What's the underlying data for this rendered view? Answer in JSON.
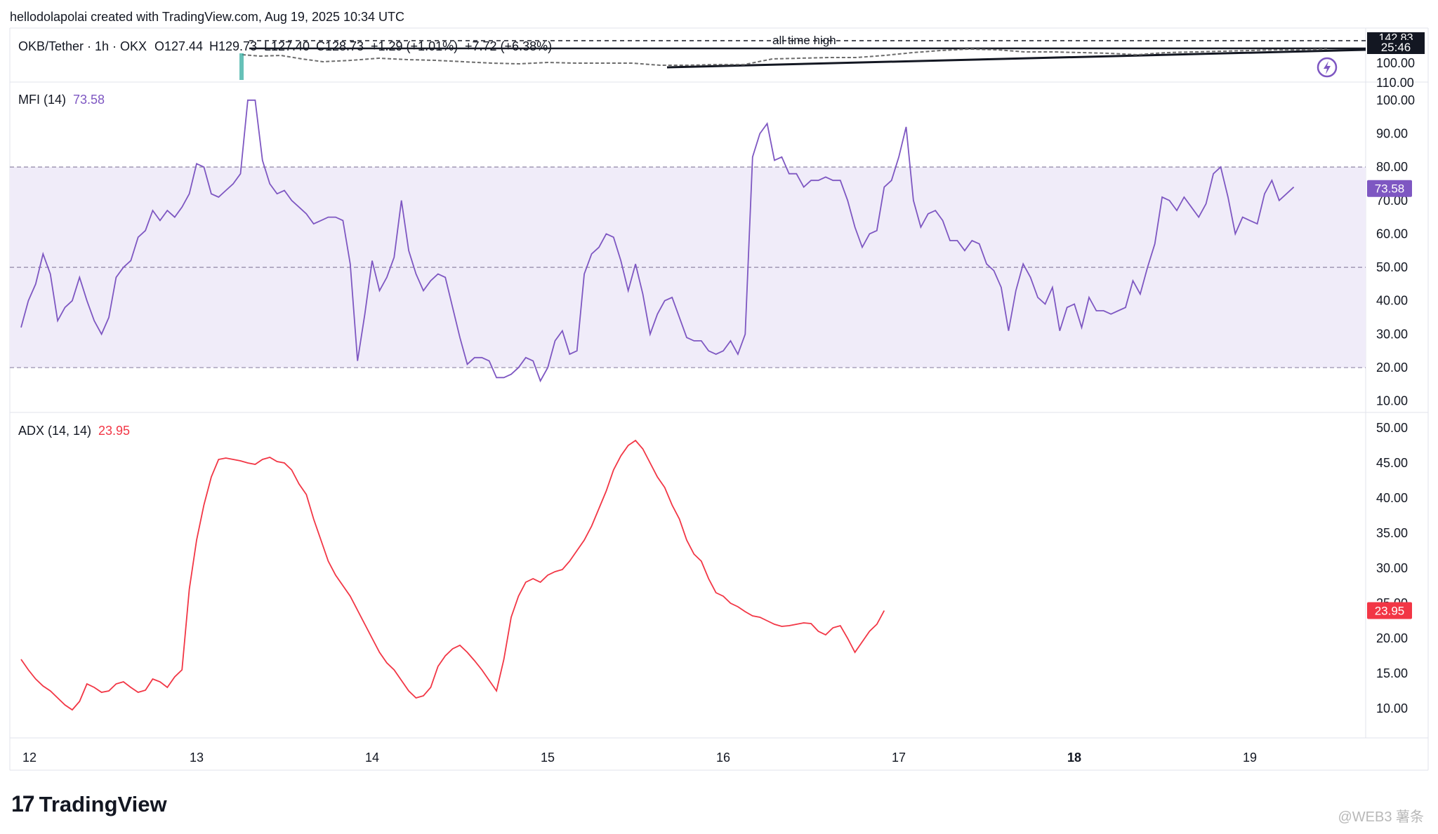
{
  "header": {
    "credit": "hellodolapolai created with TradingView.com, Aug 19, 2025 10:34 UTC"
  },
  "price_pane": {
    "symbol_line": "OKB/Tether · 1h · OKX",
    "open": "O127.44",
    "high": "H129.73",
    "low": "L127.40",
    "close": "C128.73",
    "change": "+1.29 (+1.01%)",
    "vol": "+7.72 (+6.38%)",
    "annotation": "all time high",
    "price_tag": "142.83",
    "countdown_tag": "25:46",
    "axis_ticks": [
      "100.00",
      "110.00"
    ]
  },
  "footer": {
    "logo_text": "TradingView",
    "watermark": "@WEB3 薯条"
  },
  "colors": {
    "mfi": "#7e57c2",
    "mfi_band": "#f0ecf9",
    "adx": "#f23645",
    "grid_dashed": "#8f86a6",
    "axis_text": "#131722"
  },
  "chart_data": [
    {
      "type": "line",
      "title": "MFI (14)",
      "current_value": "73.58",
      "ylim": [
        7,
        105
      ],
      "yticks": [
        "10.00",
        "20.00",
        "30.00",
        "40.00",
        "50.00",
        "60.00",
        "70.00",
        "80.00",
        "90.00",
        "100.00"
      ],
      "bands": [
        20,
        50,
        80
      ],
      "x_start": 12.0,
      "x_step": 0.04167,
      "x_ticks": [
        "12",
        "13",
        "14",
        "15",
        "16",
        "17",
        "18",
        "19"
      ],
      "series": [
        {
          "name": "MFI",
          "values": [
            32,
            40,
            45,
            54,
            48,
            34,
            38,
            40,
            47,
            40,
            34,
            30,
            35,
            47,
            50,
            52,
            59,
            61,
            67,
            64,
            67,
            65,
            68,
            72,
            81,
            80,
            72,
            71,
            73,
            75,
            78,
            100,
            100,
            82,
            75,
            72,
            73,
            70,
            68,
            66,
            63,
            64,
            65,
            65,
            64,
            51,
            22,
            36,
            52,
            43,
            47,
            53,
            70,
            55,
            48,
            43,
            46,
            48,
            47,
            38,
            29,
            21,
            23,
            23,
            22,
            17,
            17,
            18,
            20,
            23,
            22,
            16,
            20,
            28,
            31,
            24,
            25,
            48,
            54,
            56,
            60,
            59,
            52,
            43,
            51,
            42,
            30,
            36,
            40,
            41,
            35,
            29,
            28,
            28,
            25,
            24,
            25,
            28,
            24,
            30,
            83,
            90,
            93,
            82,
            83,
            78,
            78,
            74,
            76,
            76,
            77,
            76,
            76,
            70,
            62,
            56,
            60,
            61,
            74,
            76,
            83,
            92,
            70,
            62,
            66,
            67,
            64,
            58,
            58,
            55,
            58,
            57,
            51,
            49,
            44,
            31,
            43,
            51,
            47,
            41,
            39,
            44,
            31,
            38,
            39,
            32,
            41,
            37,
            37,
            36,
            37,
            38,
            46,
            42,
            50,
            57,
            71,
            70,
            67,
            71,
            68,
            65,
            69,
            78,
            80,
            71,
            60,
            65,
            64,
            63,
            72,
            76,
            70,
            72,
            74
          ]
        }
      ]
    },
    {
      "type": "line",
      "title": "ADX (14, 14)",
      "current_value": "23.95",
      "ylim": [
        6,
        52
      ],
      "yticks": [
        "10.00",
        "15.00",
        "20.00",
        "25.00",
        "30.00",
        "35.00",
        "40.00",
        "45.00",
        "50.00"
      ],
      "x_start": 12.0,
      "x_step": 0.04167,
      "x_ticks": [
        "12",
        "13",
        "14",
        "15",
        "16",
        "17",
        "18",
        "19"
      ],
      "series": [
        {
          "name": "ADX",
          "values": [
            17,
            15.5,
            14.2,
            13.2,
            12.5,
            11.5,
            10.5,
            9.8,
            11,
            13.5,
            13,
            12.3,
            12.5,
            13.5,
            13.8,
            13,
            12.3,
            12.6,
            14.2,
            13.8,
            13,
            14.5,
            15.5,
            27,
            34,
            39,
            43,
            45.5,
            45.7,
            45.5,
            45.3,
            45,
            44.8,
            45.5,
            45.8,
            45.2,
            45,
            44,
            42,
            40.5,
            37,
            34,
            31,
            29,
            27.5,
            26,
            24,
            22,
            20,
            18,
            16.5,
            15.5,
            14,
            12.5,
            11.5,
            11.8,
            13,
            16,
            17.5,
            18.5,
            19,
            18,
            16.8,
            15.5,
            14,
            12.5,
            17,
            23,
            26,
            28,
            28.5,
            28,
            29,
            29.5,
            29.8,
            31,
            32.5,
            34,
            36,
            38.5,
            41,
            44,
            46,
            47.5,
            48.2,
            47,
            45,
            43,
            41.5,
            39,
            37,
            34,
            32,
            31,
            28.5,
            26.5,
            26,
            25,
            24.5,
            23.8,
            23.2,
            23,
            22.5,
            22,
            21.7,
            21.8,
            22,
            22.2,
            22.1,
            21,
            20.5,
            21.5,
            21.8,
            20,
            18,
            19.5,
            21,
            22,
            23.95
          ]
        }
      ]
    }
  ]
}
